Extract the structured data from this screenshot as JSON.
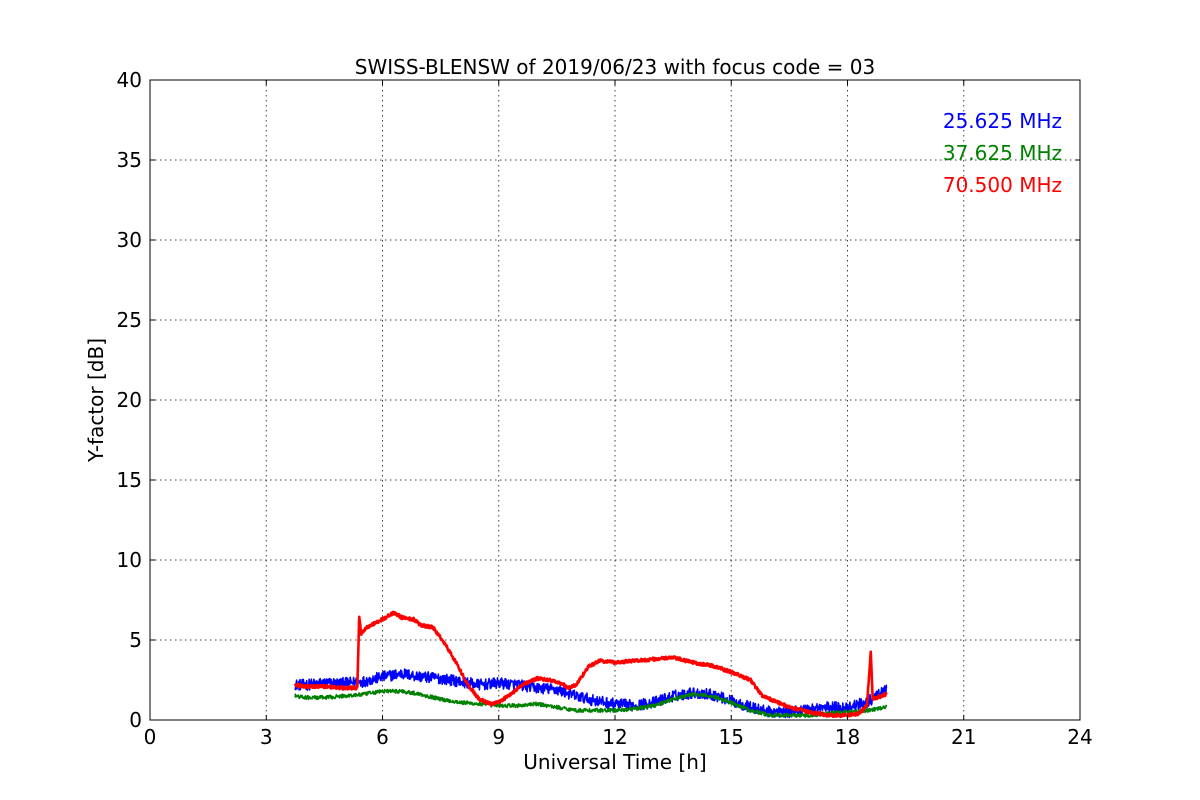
{
  "chart_data": {
    "type": "line",
    "title": "SWISS-BLENSW of 2019/06/23 with focus code = 03",
    "xlabel": "Universal Time [h]",
    "ylabel": "Y-factor [dB]",
    "xlim": [
      0,
      24
    ],
    "ylim": [
      0,
      40
    ],
    "xticks": [
      0,
      3,
      6,
      9,
      12,
      15,
      18,
      21,
      24
    ],
    "yticks": [
      0,
      5,
      10,
      15,
      20,
      25,
      30,
      35,
      40
    ],
    "grid": true,
    "legend_position": "top-right",
    "series": [
      {
        "name": "25.625 MHz",
        "color": "#0000ff",
        "noise": 0.35,
        "x": [
          3.75,
          4.0,
          4.5,
          5.0,
          5.5,
          6.0,
          6.5,
          7.0,
          7.5,
          8.0,
          8.5,
          9.0,
          9.5,
          10.0,
          10.5,
          11.0,
          11.5,
          12.0,
          12.5,
          13.0,
          13.5,
          14.0,
          14.5,
          15.0,
          15.5,
          16.0,
          16.5,
          17.0,
          17.5,
          18.0,
          18.5,
          19.0
        ],
        "y": [
          2.2,
          2.2,
          2.3,
          2.3,
          2.4,
          2.7,
          2.9,
          2.7,
          2.6,
          2.4,
          2.2,
          2.3,
          2.2,
          2.0,
          1.9,
          1.5,
          1.2,
          1.0,
          0.9,
          1.1,
          1.5,
          1.7,
          1.6,
          1.2,
          0.8,
          0.5,
          0.5,
          0.7,
          0.8,
          0.8,
          1.1,
          1.9
        ]
      },
      {
        "name": "37.625 MHz",
        "color": "#008000",
        "noise": 0.12,
        "x": [
          3.75,
          4.0,
          4.5,
          5.0,
          5.5,
          6.0,
          6.5,
          7.0,
          7.5,
          8.0,
          8.5,
          9.0,
          9.5,
          10.0,
          10.5,
          11.0,
          11.5,
          12.0,
          12.5,
          13.0,
          13.5,
          14.0,
          14.5,
          15.0,
          15.5,
          16.0,
          16.5,
          17.0,
          17.5,
          18.0,
          18.5,
          19.0
        ],
        "y": [
          1.5,
          1.4,
          1.4,
          1.5,
          1.6,
          1.8,
          1.8,
          1.6,
          1.3,
          1.1,
          1.0,
          0.9,
          0.9,
          1.0,
          0.8,
          0.6,
          0.6,
          0.6,
          0.7,
          0.9,
          1.3,
          1.6,
          1.5,
          1.1,
          0.6,
          0.3,
          0.3,
          0.3,
          0.4,
          0.5,
          0.6,
          0.8
        ]
      },
      {
        "name": "70.500 MHz",
        "color": "#ff0000",
        "noise": 0.1,
        "x": [
          3.75,
          4.0,
          4.5,
          5.0,
          5.35,
          5.4,
          5.45,
          5.6,
          6.0,
          6.3,
          6.5,
          6.8,
          7.0,
          7.3,
          7.6,
          7.9,
          8.2,
          8.5,
          8.8,
          9.0,
          9.3,
          9.6,
          10.0,
          10.3,
          10.6,
          10.8,
          11.0,
          11.3,
          11.6,
          12.0,
          12.5,
          13.0,
          13.5,
          14.0,
          14.5,
          15.0,
          15.5,
          15.8,
          16.0,
          16.5,
          17.0,
          17.5,
          18.0,
          18.3,
          18.5,
          18.6,
          18.65,
          18.75,
          19.0
        ],
        "y": [
          2.2,
          2.1,
          2.1,
          2.0,
          2.0,
          6.5,
          5.4,
          5.8,
          6.3,
          6.7,
          6.4,
          6.3,
          5.9,
          5.8,
          4.8,
          3.6,
          2.2,
          1.3,
          1.0,
          1.1,
          1.6,
          2.2,
          2.6,
          2.5,
          2.3,
          2.0,
          2.2,
          3.3,
          3.7,
          3.6,
          3.7,
          3.8,
          3.9,
          3.6,
          3.4,
          3.0,
          2.5,
          1.5,
          1.3,
          0.8,
          0.5,
          0.3,
          0.3,
          0.4,
          0.9,
          4.2,
          1.3,
          1.4,
          1.6
        ]
      }
    ]
  }
}
